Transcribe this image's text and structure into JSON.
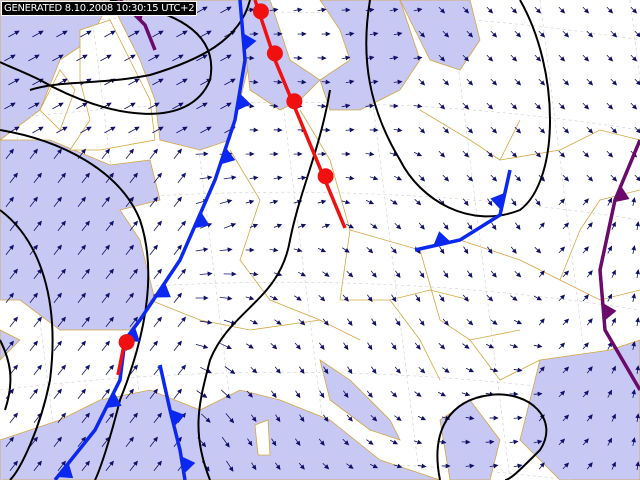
{
  "header": {
    "generated": "GENERATED 8.10.2008 10:30:15 UTC+2"
  },
  "colors": {
    "sea": "#c8c8f4",
    "land": "#ffffff",
    "borders": "#d4a640",
    "wind_arrows": "#10106a",
    "isobars": "#000000",
    "cold_front": "#0a28f0",
    "warm_front": "#f01010",
    "occluded_front": "#6a0a6a"
  },
  "layers": [
    "sea",
    "country-borders",
    "graticule",
    "wind-arrows",
    "isobars",
    "cold-fronts",
    "warm-fronts",
    "occluded-fronts"
  ]
}
